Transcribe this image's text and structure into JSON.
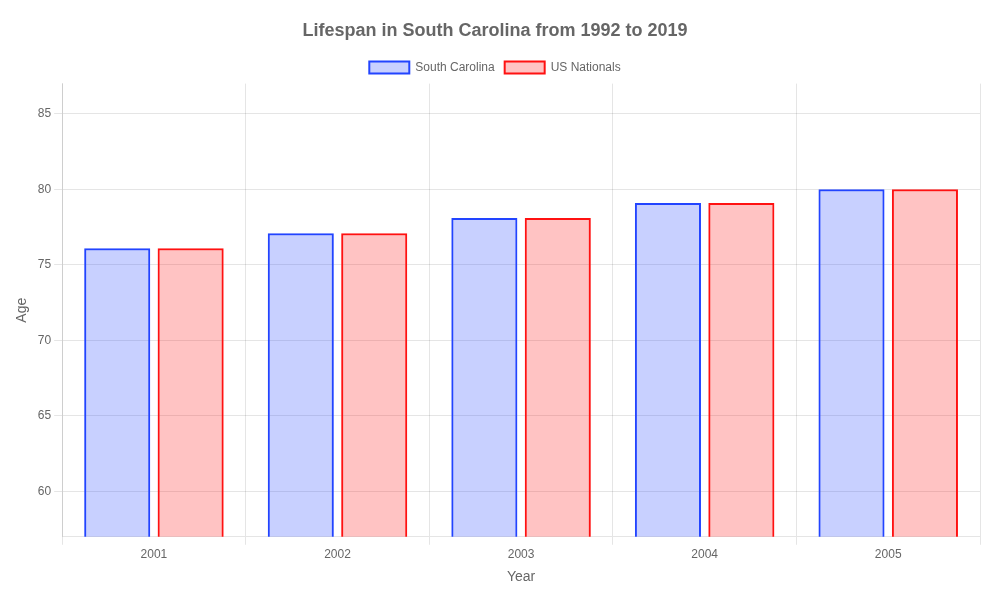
{
  "chart_data": {
    "type": "bar",
    "title": "Lifespan in South Carolina from 1992 to 2019",
    "xlabel": "Year",
    "ylabel": "Age",
    "categories": [
      "2001",
      "2002",
      "2003",
      "2004",
      "2005"
    ],
    "series": [
      {
        "name": "South Carolina",
        "color": "#2244ff",
        "values": [
          76.1,
          77.1,
          78.1,
          79.1,
          80.0
        ]
      },
      {
        "name": "US Nationals",
        "color": "#ff1111",
        "values": [
          76.1,
          77.1,
          78.1,
          79.1,
          80.0
        ]
      }
    ],
    "ylim": [
      57,
      87
    ],
    "yticks": [
      60,
      65,
      70,
      75,
      80,
      85
    ],
    "grid": true,
    "legend": "top"
  }
}
